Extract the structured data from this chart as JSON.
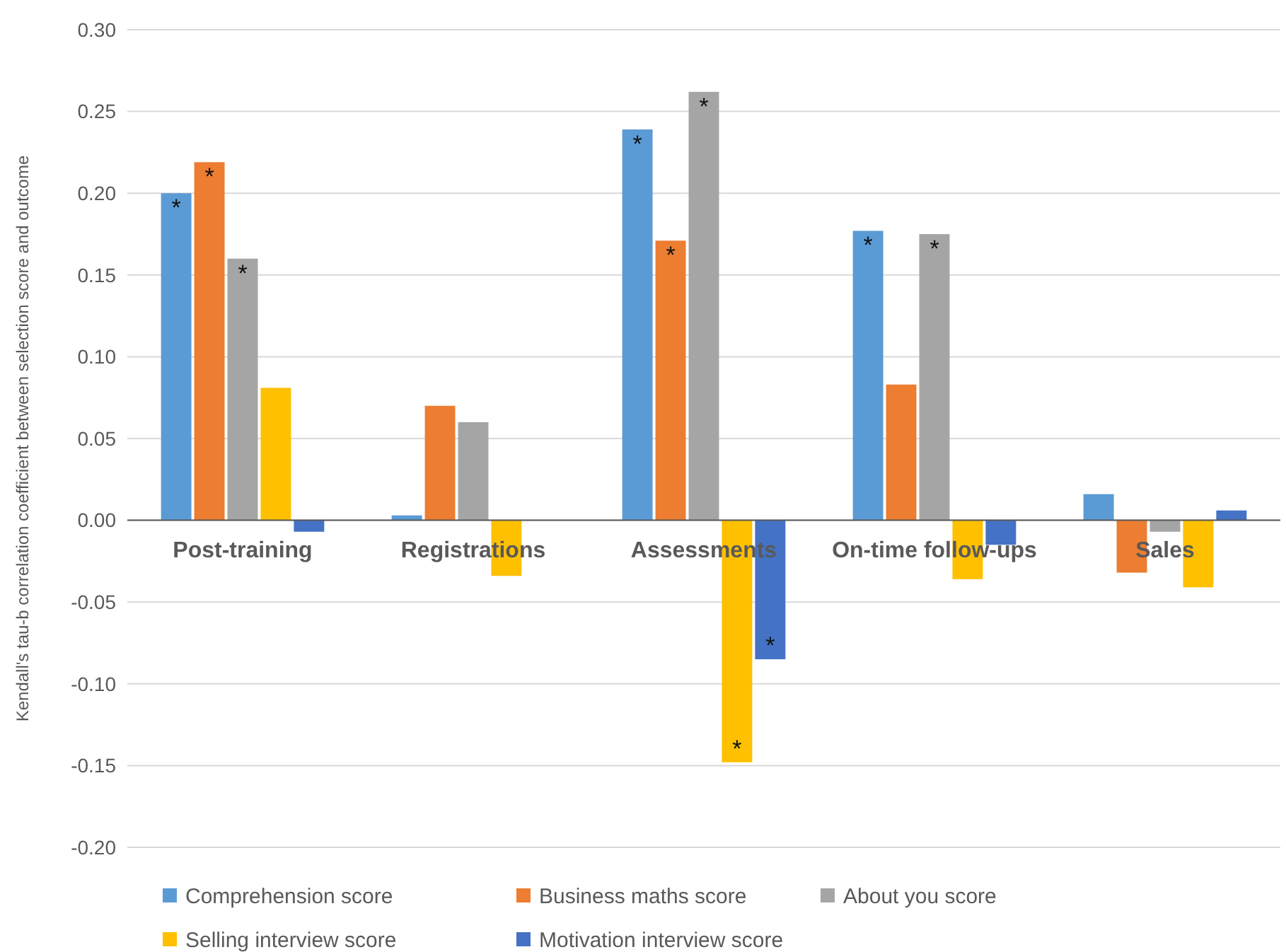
{
  "chart_data": {
    "type": "bar",
    "ylabel": "Kendall's tau-b correlation coefficient between selection score and outcome",
    "categories": [
      "Post-training",
      "Registrations",
      "Assessments",
      "On-time follow-ups",
      "Sales"
    ],
    "series": [
      {
        "name": "Comprehension score",
        "color": "#5b9bd5",
        "values": [
          0.2,
          0.003,
          0.239,
          0.177,
          0.016
        ],
        "value_labels": [
          "*",
          null,
          "*",
          "*",
          null
        ]
      },
      {
        "name": "Business maths score",
        "color": "#ed7d31",
        "values": [
          0.219,
          0.07,
          0.171,
          0.083,
          -0.032
        ],
        "value_labels": [
          "*",
          null,
          "*",
          null,
          null
        ]
      },
      {
        "name": "About you score",
        "color": "#a5a5a5",
        "values": [
          0.16,
          0.06,
          0.262,
          0.175,
          -0.007
        ],
        "value_labels": [
          "*",
          null,
          "*",
          "*",
          null
        ]
      },
      {
        "name": "Selling interview score",
        "color": "#ffc000",
        "values": [
          0.081,
          -0.034,
          -0.148,
          -0.036,
          -0.041
        ],
        "value_labels": [
          null,
          null,
          "*",
          null,
          null
        ]
      },
      {
        "name": "Motivation interview score",
        "color": "#4472c4",
        "values": [
          -0.007,
          null,
          -0.085,
          -0.015,
          0.006
        ],
        "value_labels": [
          null,
          null,
          "*",
          null,
          null
        ]
      }
    ],
    "ylim": [
      -0.2,
      0.3
    ],
    "yticks": [
      {
        "value": -0.2,
        "label": "-0.20"
      },
      {
        "value": -0.15,
        "label": "-0.15"
      },
      {
        "value": -0.1,
        "label": "-0.10"
      },
      {
        "value": -0.05,
        "label": "-0.05"
      },
      {
        "value": 0,
        "label": "0.00"
      },
      {
        "value": 0.05,
        "label": "0.05"
      },
      {
        "value": 0.1,
        "label": "0.10"
      },
      {
        "value": 0.15,
        "label": "0.15"
      },
      {
        "value": 0.2,
        "label": "0.20"
      },
      {
        "value": 0.25,
        "label": "0.25"
      },
      {
        "value": 0.3,
        "label": "0.30"
      }
    ],
    "grid": "y",
    "legend": "bottom"
  }
}
